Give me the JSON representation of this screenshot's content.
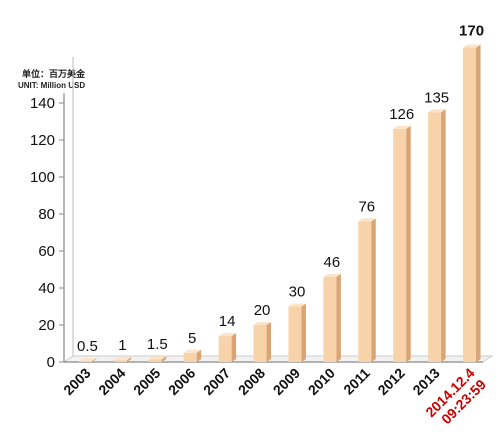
{
  "chart_data": {
    "type": "bar",
    "unit_label_cn": "单位：百万美金",
    "unit_label_en": "UNIT: Million USD",
    "categories": [
      "2003",
      "2004",
      "2005",
      "2006",
      "2007",
      "2008",
      "2009",
      "2010",
      "2011",
      "2012",
      "2013",
      "2014.12.4 09:23:59"
    ],
    "category_lines": [
      [
        "2003"
      ],
      [
        "2004"
      ],
      [
        "2005"
      ],
      [
        "2006"
      ],
      [
        "2007"
      ],
      [
        "2008"
      ],
      [
        "2009"
      ],
      [
        "2010"
      ],
      [
        "2011"
      ],
      [
        "2012"
      ],
      [
        "2013"
      ],
      [
        "2014.12.4",
        "09:23:59"
      ]
    ],
    "values": [
      0.5,
      1,
      1.5,
      5,
      14,
      20,
      30,
      46,
      76,
      126,
      135,
      170
    ],
    "value_labels": [
      "0.5",
      "1",
      "1.5",
      "5",
      "14",
      "20",
      "30",
      "46",
      "76",
      "126",
      "135",
      "170"
    ],
    "ylim": [
      0,
      150
    ],
    "yticks": [
      0,
      20,
      40,
      60,
      80,
      100,
      120,
      140
    ],
    "grid": false,
    "colors": {
      "bar_front": "#f8d3aa",
      "bar_side": "#d9a574",
      "bar_top": "#fbe4c8",
      "highlight_label": "#cc0000",
      "axis": "#888888"
    },
    "highlight_index": 11
  }
}
